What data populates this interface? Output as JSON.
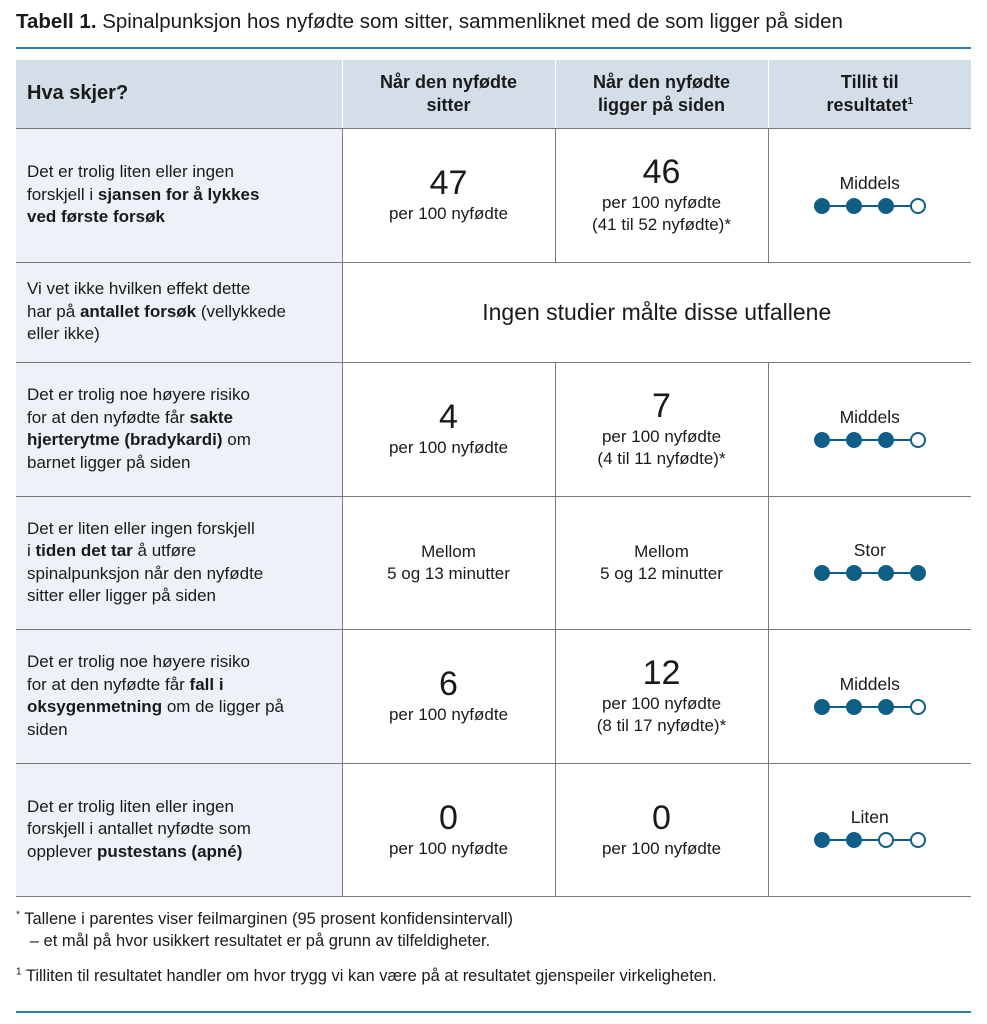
{
  "title": {
    "label": "Tabell 1.",
    "text": "Spinalpunksjon hos nyfødte som sitter, sammenliknet med de som ligger på siden"
  },
  "table": {
    "headers": {
      "question": "Hva skjer?",
      "sitting": [
        "Når den nyfødte",
        "sitter"
      ],
      "lying": [
        "Når den nyfødte",
        "ligger på siden"
      ],
      "certainty": [
        "Tillit til",
        "resultatet"
      ],
      "certainty_mark": "1"
    },
    "rows": [
      {
        "q": [
          "Det er trolig liten eller ingen",
          "forskjell i ",
          "sjansen for å lykkes",
          "ved første forsøk"
        ],
        "sit_big": "47",
        "sit_sub": [
          "per 100 nyfødte"
        ],
        "lie_big": "46",
        "lie_sub": [
          "per 100 nyfødte",
          "(41 til 52 nyfødte)*"
        ],
        "cert_label": "Middels",
        "cert_level": 3
      },
      {
        "q": [
          "Vi vet ikke hvilken effekt dette",
          "har på ",
          "antallet forsøk",
          " (vellykkede",
          "eller ikke)"
        ],
        "span_text": "Ingen studier målte disse utfallene"
      },
      {
        "q": [
          "Det er trolig noe høyere risiko",
          "for at den nyfødte får ",
          "sakte",
          "hjerterytme (bradykardi)",
          " om",
          "barnet ligger på siden"
        ],
        "sit_big": "4",
        "sit_sub": [
          "per 100 nyfødte"
        ],
        "lie_big": "7",
        "lie_sub": [
          "per 100 nyfødte",
          "(4 til 11 nyfødte)*"
        ],
        "cert_label": "Middels",
        "cert_level": 3
      },
      {
        "q": [
          "Det er liten eller ingen forskjell",
          "i ",
          "tiden det tar",
          " å utføre",
          "spinalpunksjon når den nyfødte",
          "sitter eller ligger på siden"
        ],
        "sit_sub": [
          "Mellom",
          "5 og 13 minutter"
        ],
        "lie_sub": [
          "Mellom",
          "5 og 12 minutter"
        ],
        "cert_label": "Stor",
        "cert_level": 4
      },
      {
        "q": [
          "Det er trolig noe høyere risiko",
          "for at den nyfødte får ",
          "fall i",
          "oksygenmetning",
          " om de ligger på",
          "siden"
        ],
        "sit_big": "6",
        "sit_sub": [
          "per 100 nyfødte"
        ],
        "lie_big": "12",
        "lie_sub": [
          "per 100 nyfødte",
          "(8 til 17 nyfødte)*"
        ],
        "cert_label": "Middels",
        "cert_level": 3
      },
      {
        "q": [
          "Det er trolig liten eller ingen",
          "forskjell i antallet nyfødte som",
          "opplever ",
          "pustestans (apné)"
        ],
        "sit_big": "0",
        "sit_sub": [
          "per 100 nyfødte"
        ],
        "lie_big": "0",
        "lie_sub": [
          "per 100 nyfødte"
        ],
        "cert_label": "Liten",
        "cert_level": 2
      }
    ]
  },
  "footnotes": {
    "f1_mark": "*",
    "f1_line1": "Tallene i parentes viser feilmarginen (95 prosent konfidensintervall)",
    "f1_line2": "– et mål på hvor usikkert resultatet er på grunn av tilfeldigheter.",
    "f2_mark": "1",
    "f2_text": "Tilliten til resultatet handler om hvor trygg vi kan være på at resultatet gjenspeiler virkeligheten."
  },
  "colors": {
    "accent": "#0e5f86",
    "rule": "#2a7fa8",
    "header_bg": "#d3dee8",
    "question_bg": "#edf2f8"
  }
}
